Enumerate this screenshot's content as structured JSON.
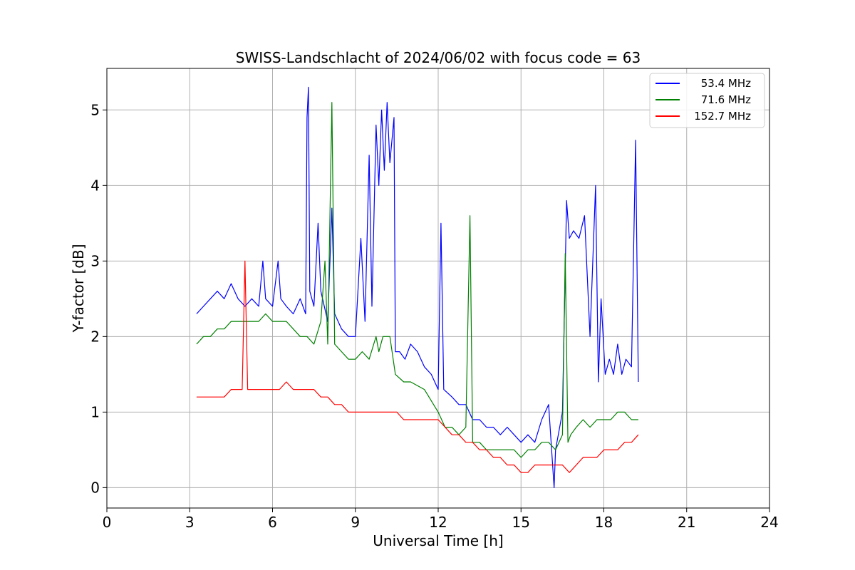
{
  "chart_data": {
    "type": "line",
    "title": "SWISS-Landschlacht of 2024/06/02 with focus code = 63",
    "xlabel": "Universal Time [h]",
    "ylabel": "Y-factor [dB]",
    "xlim": [
      0,
      24
    ],
    "ylim": [
      -0.27,
      5.55
    ],
    "xticks": [
      0,
      3,
      6,
      9,
      12,
      15,
      18,
      21,
      24
    ],
    "yticks": [
      0,
      1,
      2,
      3,
      4,
      5
    ],
    "grid": true,
    "legend_position": "top-right",
    "series": [
      {
        "name": "53.4 MHz",
        "color": "#0000ff",
        "x": [
          3.25,
          3.5,
          3.75,
          4.0,
          4.25,
          4.5,
          4.75,
          5.0,
          5.25,
          5.5,
          5.65,
          5.75,
          6.0,
          6.2,
          6.3,
          6.5,
          6.75,
          7.0,
          7.2,
          7.25,
          7.3,
          7.35,
          7.5,
          7.65,
          7.75,
          8.0,
          8.15,
          8.25,
          8.5,
          8.75,
          9.0,
          9.2,
          9.35,
          9.5,
          9.6,
          9.75,
          9.85,
          9.95,
          10.05,
          10.15,
          10.25,
          10.4,
          10.45,
          10.6,
          10.8,
          11.0,
          11.25,
          11.5,
          11.75,
          12.0,
          12.1,
          12.2,
          12.5,
          12.75,
          13.0,
          13.25,
          13.5,
          13.75,
          14.0,
          14.25,
          14.5,
          14.75,
          15.0,
          15.25,
          15.5,
          15.75,
          16.0,
          16.2,
          16.25,
          16.5,
          16.65,
          16.75,
          16.9,
          17.1,
          17.3,
          17.5,
          17.7,
          17.8,
          17.9,
          18.05,
          18.2,
          18.35,
          18.5,
          18.65,
          18.8,
          19.0,
          19.15,
          19.25
        ],
        "y": [
          2.3,
          2.4,
          2.5,
          2.6,
          2.5,
          2.7,
          2.5,
          2.4,
          2.5,
          2.4,
          3.0,
          2.5,
          2.4,
          3.0,
          2.5,
          2.4,
          2.3,
          2.5,
          2.3,
          4.9,
          5.3,
          2.6,
          2.4,
          3.5,
          2.6,
          2.2,
          3.7,
          2.3,
          2.1,
          2.0,
          2.0,
          3.3,
          2.2,
          4.4,
          2.4,
          4.8,
          4.0,
          5.0,
          4.2,
          5.1,
          4.3,
          4.9,
          1.8,
          1.8,
          1.7,
          1.9,
          1.8,
          1.6,
          1.5,
          1.3,
          3.5,
          1.3,
          1.2,
          1.1,
          1.1,
          0.9,
          0.9,
          0.8,
          0.8,
          0.7,
          0.8,
          0.7,
          0.6,
          0.7,
          0.6,
          0.9,
          1.1,
          0.0,
          0.5,
          1.0,
          3.8,
          3.3,
          3.4,
          3.3,
          3.6,
          2.0,
          4.0,
          1.4,
          2.5,
          1.5,
          1.7,
          1.5,
          1.9,
          1.5,
          1.7,
          1.6,
          4.6,
          1.4
        ]
      },
      {
        "name": "71.6 MHz",
        "color": "#008000",
        "x": [
          3.25,
          3.5,
          3.75,
          4.0,
          4.25,
          4.5,
          4.75,
          5.0,
          5.25,
          5.5,
          5.75,
          6.0,
          6.25,
          6.5,
          6.75,
          7.0,
          7.25,
          7.5,
          7.75,
          7.9,
          8.0,
          8.15,
          8.25,
          8.5,
          8.75,
          9.0,
          9.25,
          9.5,
          9.75,
          9.85,
          10.0,
          10.25,
          10.45,
          10.75,
          11.0,
          11.5,
          12.0,
          12.25,
          12.5,
          12.75,
          13.0,
          13.15,
          13.25,
          13.5,
          13.75,
          14.0,
          14.25,
          14.5,
          14.75,
          15.0,
          15.25,
          15.5,
          15.75,
          16.0,
          16.25,
          16.5,
          16.6,
          16.7,
          16.8,
          17.0,
          17.25,
          17.5,
          17.75,
          18.0,
          18.25,
          18.5,
          18.75,
          19.0,
          19.25
        ],
        "y": [
          1.9,
          2.0,
          2.0,
          2.1,
          2.1,
          2.2,
          2.2,
          2.2,
          2.2,
          2.2,
          2.3,
          2.2,
          2.2,
          2.2,
          2.1,
          2.0,
          2.0,
          1.9,
          2.2,
          3.0,
          1.9,
          5.1,
          1.9,
          1.8,
          1.7,
          1.7,
          1.8,
          1.7,
          2.0,
          1.8,
          2.0,
          2.0,
          1.5,
          1.4,
          1.4,
          1.3,
          1.0,
          0.8,
          0.8,
          0.7,
          0.8,
          3.6,
          0.6,
          0.6,
          0.5,
          0.5,
          0.5,
          0.5,
          0.5,
          0.4,
          0.5,
          0.5,
          0.6,
          0.6,
          0.5,
          0.7,
          3.1,
          0.6,
          0.7,
          0.8,
          0.9,
          0.8,
          0.9,
          0.9,
          0.9,
          1.0,
          1.0,
          0.9,
          0.9
        ]
      },
      {
        "name": "152.7 MHz",
        "color": "#ff0000",
        "x": [
          3.25,
          3.5,
          3.75,
          4.0,
          4.25,
          4.5,
          4.75,
          4.9,
          5.0,
          5.1,
          5.25,
          5.5,
          5.75,
          6.0,
          6.25,
          6.5,
          6.75,
          7.0,
          7.25,
          7.5,
          7.75,
          8.0,
          8.25,
          8.5,
          8.75,
          9.0,
          9.25,
          9.5,
          9.75,
          10.0,
          10.25,
          10.5,
          10.75,
          11.0,
          11.25,
          11.5,
          11.75,
          12.0,
          12.25,
          12.5,
          12.75,
          13.0,
          13.25,
          13.5,
          13.75,
          14.0,
          14.25,
          14.5,
          14.75,
          15.0,
          15.25,
          15.5,
          15.75,
          16.0,
          16.25,
          16.5,
          16.75,
          17.0,
          17.25,
          17.5,
          17.75,
          18.0,
          18.25,
          18.5,
          18.75,
          19.0,
          19.25
        ],
        "y": [
          1.2,
          1.2,
          1.2,
          1.2,
          1.2,
          1.3,
          1.3,
          1.3,
          3.0,
          1.3,
          1.3,
          1.3,
          1.3,
          1.3,
          1.3,
          1.4,
          1.3,
          1.3,
          1.3,
          1.3,
          1.2,
          1.2,
          1.1,
          1.1,
          1.0,
          1.0,
          1.0,
          1.0,
          1.0,
          1.0,
          1.0,
          1.0,
          0.9,
          0.9,
          0.9,
          0.9,
          0.9,
          0.9,
          0.8,
          0.7,
          0.7,
          0.6,
          0.6,
          0.5,
          0.5,
          0.4,
          0.4,
          0.3,
          0.3,
          0.2,
          0.2,
          0.3,
          0.3,
          0.3,
          0.3,
          0.3,
          0.2,
          0.3,
          0.4,
          0.4,
          0.4,
          0.5,
          0.5,
          0.5,
          0.6,
          0.6,
          0.7
        ]
      }
    ]
  }
}
